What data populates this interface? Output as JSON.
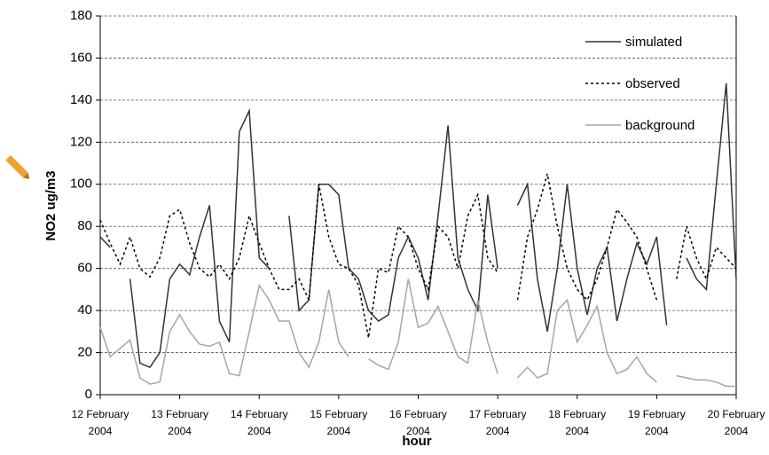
{
  "chart_data": {
    "type": "line",
    "ylabel": "NO2 ug/m3",
    "xlabel": "hour",
    "x": [
      0,
      3,
      6,
      9,
      12,
      15,
      18,
      21,
      24,
      27,
      30,
      33,
      36,
      39,
      42,
      45,
      48,
      51,
      54,
      57,
      60,
      63,
      66,
      69,
      72,
      75,
      78,
      81,
      84,
      87,
      90,
      93,
      96,
      99,
      102,
      105,
      108,
      111,
      114,
      117,
      120,
      123,
      126,
      129,
      132,
      135,
      138,
      141,
      144,
      147,
      150,
      153,
      156,
      159,
      162,
      165,
      168,
      171,
      174,
      177,
      180,
      183,
      186,
      189,
      192
    ],
    "series": [
      {
        "name": "simulated",
        "color": "#333333",
        "dashed": false,
        "values": [
          75,
          70,
          null,
          55,
          15,
          13,
          20,
          55,
          62,
          57,
          75,
          90,
          35,
          25,
          125,
          135,
          65,
          60,
          null,
          85,
          40,
          45,
          100,
          100,
          95,
          60,
          55,
          40,
          35,
          38,
          65,
          75,
          65,
          45,
          85,
          128,
          65,
          50,
          40,
          95,
          60,
          null,
          90,
          100,
          55,
          30,
          60,
          100,
          60,
          38,
          60,
          70,
          35,
          55,
          72,
          62,
          75,
          33,
          null,
          65,
          55,
          50,
          100,
          148,
          55
        ]
      },
      {
        "name": "observed",
        "color": "#000000",
        "dashed": true,
        "values": [
          83,
          72,
          62,
          75,
          60,
          56,
          65,
          85,
          88,
          72,
          60,
          56,
          62,
          55,
          65,
          85,
          72,
          60,
          50,
          50,
          55,
          45,
          100,
          75,
          62,
          60,
          52,
          27,
          60,
          58,
          80,
          75,
          60,
          50,
          80,
          75,
          60,
          85,
          95,
          65,
          58,
          null,
          45,
          75,
          88,
          105,
          80,
          60,
          50,
          45,
          55,
          70,
          88,
          82,
          75,
          60,
          45,
          null,
          55,
          80,
          65,
          55,
          70,
          65,
          60
        ]
      },
      {
        "name": "background",
        "color": "#a6a6a6",
        "dashed": false,
        "values": [
          32,
          18,
          22,
          26,
          8,
          5,
          6,
          30,
          38,
          30,
          24,
          23,
          25,
          10,
          9,
          30,
          52,
          45,
          35,
          35,
          20,
          13,
          25,
          50,
          25,
          18,
          null,
          17,
          14,
          12,
          25,
          55,
          32,
          34,
          42,
          30,
          18,
          15,
          45,
          25,
          10,
          null,
          8,
          13,
          8,
          10,
          40,
          45,
          25,
          33,
          42,
          20,
          10,
          12,
          18,
          10,
          6,
          null,
          9,
          8,
          7,
          7,
          6,
          4,
          4
        ]
      }
    ],
    "xlim": [
      0,
      192
    ],
    "xticks": [
      {
        "value": 0,
        "label": "12 February 2004"
      },
      {
        "value": 24,
        "label": "13 February 2004"
      },
      {
        "value": 48,
        "label": "14 February 2004"
      },
      {
        "value": 72,
        "label": "15 February 2004"
      },
      {
        "value": 96,
        "label": "16 February 2004"
      },
      {
        "value": 120,
        "label": "17 February 2004"
      },
      {
        "value": 144,
        "label": "18 February 2004"
      },
      {
        "value": 168,
        "label": "19 February 2004"
      },
      {
        "value": 192,
        "label": "20 February 2004"
      }
    ],
    "ylim": [
      0,
      180
    ],
    "yticks": [
      0,
      20,
      40,
      60,
      80,
      100,
      120,
      140,
      160,
      180
    ],
    "grid": true,
    "legend": "upper right"
  }
}
